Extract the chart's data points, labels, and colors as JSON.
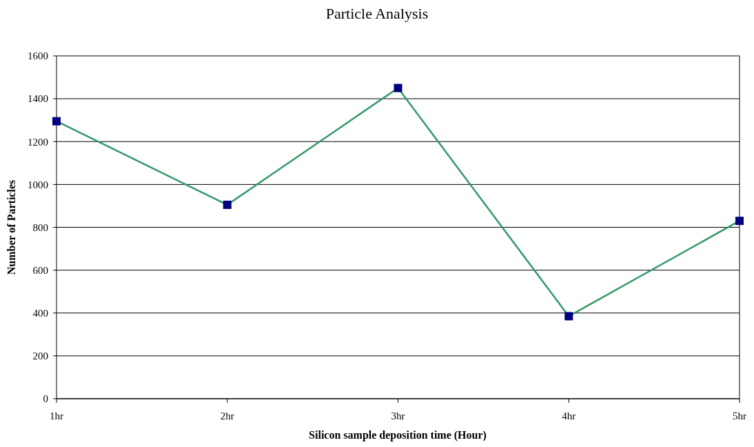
{
  "chart_data": {
    "type": "line",
    "title": "Particle Analysis",
    "xlabel": "Silicon sample deposition time (Hour)",
    "ylabel": "Number of Particles",
    "categories": [
      "1hr",
      "2hr",
      "3hr",
      "4hr",
      "5hr"
    ],
    "series": [
      {
        "color": "#339966",
        "values": [
          1295,
          905,
          1450,
          385,
          830
        ]
      }
    ],
    "ylim": [
      0,
      1600
    ],
    "yticks": [
      0,
      200,
      400,
      600,
      800,
      1000,
      1200,
      1400,
      1600
    ],
    "grid": "y",
    "marker": "square",
    "line_style": "solid"
  }
}
